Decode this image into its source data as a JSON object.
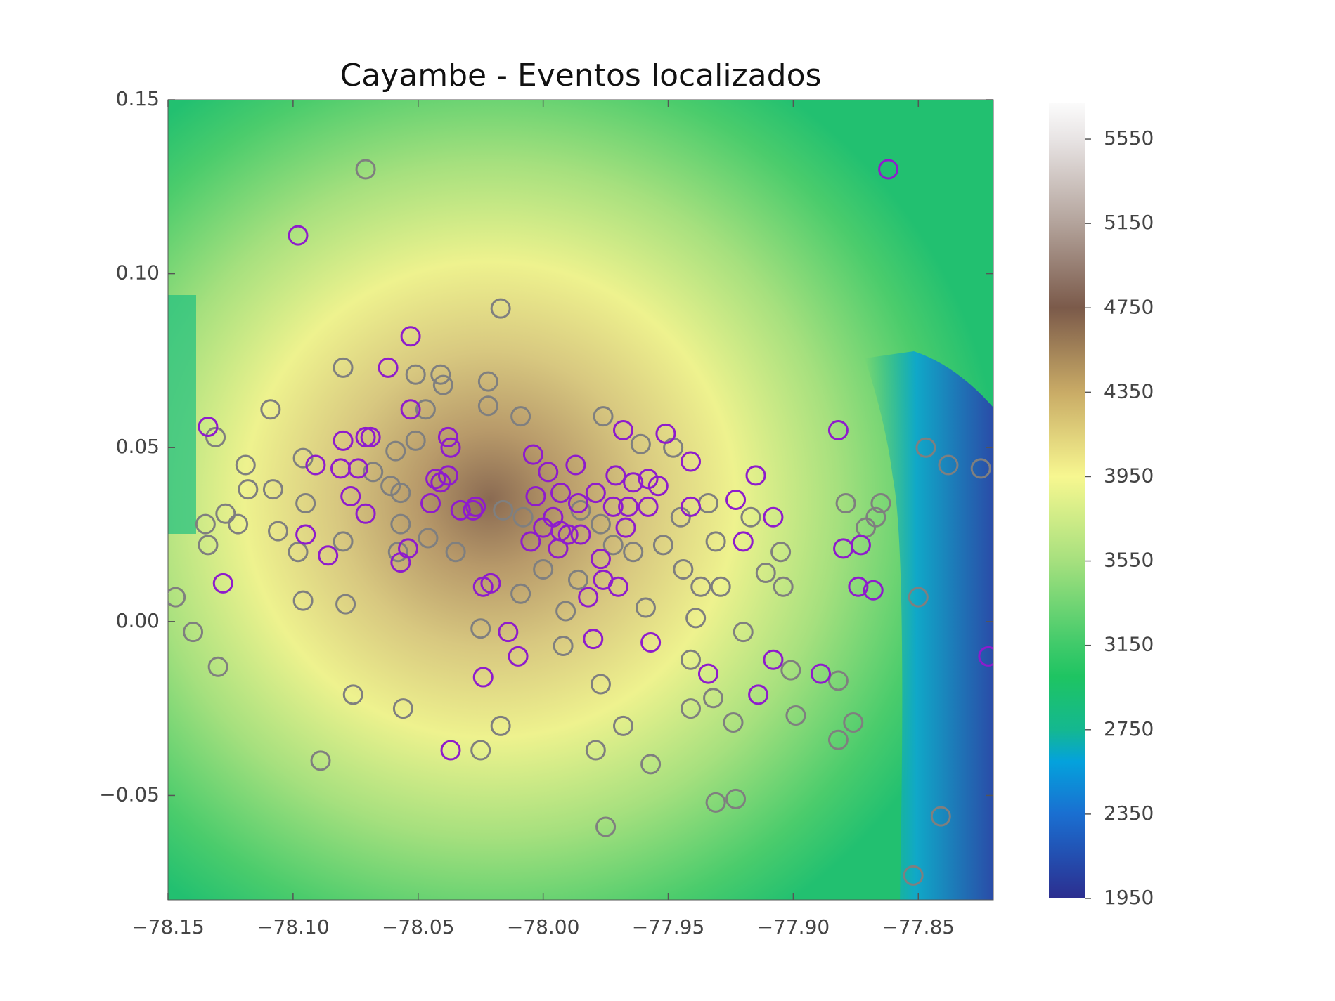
{
  "chart_data": {
    "type": "scatter",
    "title": "Cayambe - Eventos localizados",
    "xlim": [
      -78.15,
      -77.82
    ],
    "ylim": [
      -0.08,
      0.15
    ],
    "xticks": [
      {
        "value": -78.15,
        "label": "−78.15"
      },
      {
        "value": -78.1,
        "label": "−78.10"
      },
      {
        "value": -78.05,
        "label": "−78.05"
      },
      {
        "value": -78.0,
        "label": "−78.00"
      },
      {
        "value": -77.95,
        "label": "−77.95"
      },
      {
        "value": -77.9,
        "label": "−77.90"
      },
      {
        "value": -77.85,
        "label": "−77.85"
      }
    ],
    "yticks": [
      {
        "value": -0.05,
        "label": "−0.05"
      },
      {
        "value": 0,
        "label": "0.00"
      },
      0.05,
      {
        "value": 0.1,
        "label": "0.10"
      },
      0.15
    ],
    "colorbar": {
      "clim": [
        1950,
        5720
      ],
      "ticks": [
        1950,
        2350,
        2750,
        3150,
        3550,
        3950,
        4350,
        4750,
        5150,
        5550
      ],
      "colormap": [
        [
          1950,
          "#2c2e8f"
        ],
        [
          2350,
          "#1a6fd1"
        ],
        [
          2600,
          "#04a2dc"
        ],
        [
          2750,
          "#14b890"
        ],
        [
          3000,
          "#1ec462"
        ],
        [
          3150,
          "#3fca6a"
        ],
        [
          3550,
          "#a6e07e"
        ],
        [
          3950,
          "#f7f790"
        ],
        [
          4350,
          "#c9ab66"
        ],
        [
          4750,
          "#7b5a4a"
        ],
        [
          5150,
          "#b3a39b"
        ],
        [
          5550,
          "#e8e4e4"
        ],
        [
          5720,
          "#fbfbfb"
        ]
      ]
    },
    "series": [
      {
        "name": "gray",
        "color": "#7f7f7f",
        "x": [
          -78.071,
          -78.017,
          -78.147,
          -78.131,
          -78.109,
          -78.08,
          -78.051,
          -78.041,
          -78.022,
          -78.04,
          -78.022,
          -78.047,
          -78.009,
          -77.976,
          -78.059,
          -78.051,
          -78.096,
          -78.119,
          -78.118,
          -78.108,
          -78.095,
          -78.127,
          -78.135,
          -78.122,
          -78.134,
          -78.106,
          -78.098,
          -78.08,
          -78.068,
          -78.061,
          -78.057,
          -78.057,
          -78.046,
          -78.035,
          -78.058,
          -78.096,
          -78.079,
          -78.14,
          -78.13,
          -78.076,
          -78.089,
          -78.056,
          -78.025,
          -78.017,
          -78.025,
          -78.016,
          -78.008,
          -78.009,
          -77.992,
          -77.977,
          -77.979,
          -77.975,
          -77.968,
          -77.957,
          -77.959,
          -77.944,
          -77.937,
          -77.929,
          -77.939,
          -77.941,
          -77.941,
          -77.932,
          -77.924,
          -77.923,
          -77.931,
          -77.899,
          -77.92,
          -77.911,
          -77.904,
          -77.905,
          -77.917,
          -77.934,
          -77.931,
          -77.945,
          -77.952,
          -77.948,
          -77.961,
          -77.985,
          -77.977,
          -77.972,
          -77.964,
          -78.0,
          -77.986,
          -77.991,
          -77.901,
          -77.882,
          -77.876,
          -77.882,
          -77.865,
          -77.871,
          -77.879,
          -77.85,
          -77.847,
          -77.838,
          -77.825,
          -77.841,
          -77.852,
          -77.867
        ],
        "values": [
          0.13,
          0.09,
          0.007,
          0.053,
          0.061,
          0.073,
          0.071,
          0.071,
          0.069,
          0.068,
          0.062,
          0.061,
          0.059,
          0.059,
          0.049,
          0.052,
          0.047,
          0.045,
          0.038,
          0.038,
          0.034,
          0.031,
          0.028,
          0.028,
          0.022,
          0.026,
          0.02,
          0.023,
          0.043,
          0.039,
          0.037,
          0.028,
          0.024,
          0.02,
          0.02,
          0.006,
          0.005,
          -0.003,
          -0.013,
          -0.021,
          -0.04,
          -0.025,
          -0.037,
          -0.03,
          -0.002,
          0.032,
          0.03,
          0.008,
          -0.007,
          -0.018,
          -0.037,
          -0.059,
          -0.03,
          -0.041,
          0.004,
          0.015,
          0.01,
          0.01,
          0.001,
          -0.011,
          -0.025,
          -0.022,
          -0.029,
          -0.051,
          -0.052,
          -0.027,
          -0.003,
          0.014,
          0.01,
          0.02,
          0.03,
          0.034,
          0.023,
          0.03,
          0.022,
          0.05,
          0.051,
          0.032,
          0.028,
          0.022,
          0.02,
          0.015,
          0.012,
          0.003,
          -0.014,
          -0.017,
          -0.029,
          -0.034,
          0.034,
          0.027,
          0.034,
          0.007,
          0.05,
          0.045,
          0.044,
          -0.056,
          -0.073,
          0.03
        ]
      },
      {
        "name": "purple",
        "color": "#8e1ccc",
        "x": [
          -78.098,
          -77.862,
          -78.134,
          -78.053,
          -78.062,
          -78.053,
          -78.08,
          -78.071,
          -78.069,
          -78.091,
          -78.081,
          -78.074,
          -78.077,
          -78.071,
          -78.095,
          -78.086,
          -78.128,
          -78.054,
          -78.057,
          -78.038,
          -78.037,
          -78.038,
          -78.043,
          -78.041,
          -78.045,
          -78.033,
          -78.027,
          -78.028,
          -78.024,
          -78.021,
          -78.014,
          -78.01,
          -78.024,
          -78.037,
          -78.004,
          -78.003,
          -77.998,
          -77.987,
          -77.993,
          -77.986,
          -77.979,
          -77.996,
          -77.993,
          -78.0,
          -77.99,
          -77.985,
          -78.005,
          -77.994,
          -77.977,
          -77.976,
          -77.97,
          -77.982,
          -77.98,
          -77.968,
          -77.951,
          -77.971,
          -77.964,
          -77.958,
          -77.954,
          -77.972,
          -77.966,
          -77.958,
          -77.967,
          -77.941,
          -77.941,
          -77.923,
          -77.915,
          -77.908,
          -77.92,
          -77.957,
          -77.934,
          -77.908,
          -77.914,
          -77.889,
          -77.882,
          -77.88,
          -77.873,
          -77.874,
          -77.868,
          -77.822
        ],
        "values": [
          0.111,
          0.13,
          0.056,
          0.082,
          0.073,
          0.061,
          0.052,
          0.053,
          0.053,
          0.045,
          0.044,
          0.044,
          0.036,
          0.031,
          0.025,
          0.019,
          0.011,
          0.021,
          0.017,
          0.053,
          0.05,
          0.042,
          0.041,
          0.04,
          0.034,
          0.032,
          0.033,
          0.032,
          0.01,
          0.011,
          -0.003,
          -0.01,
          -0.016,
          -0.037,
          0.048,
          0.036,
          0.043,
          0.045,
          0.037,
          0.034,
          0.037,
          0.03,
          0.026,
          0.027,
          0.025,
          0.025,
          0.023,
          0.021,
          0.018,
          0.012,
          0.01,
          0.007,
          -0.005,
          0.055,
          0.054,
          0.042,
          0.04,
          0.041,
          0.039,
          0.033,
          0.033,
          0.033,
          0.027,
          0.046,
          0.033,
          0.035,
          0.042,
          0.03,
          0.023,
          -0.006,
          -0.015,
          -0.011,
          -0.021,
          -0.015,
          0.055,
          0.021,
          0.022,
          0.01,
          0.009,
          -0.01
        ]
      }
    ]
  }
}
